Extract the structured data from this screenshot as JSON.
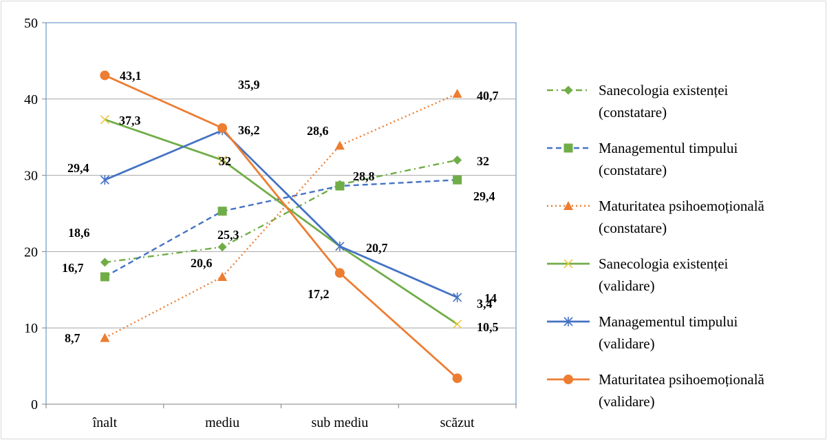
{
  "chart_data": {
    "type": "line",
    "categories": [
      "înalt",
      "mediu",
      "sub mediu",
      "scăzut"
    ],
    "ylim": [
      0,
      50
    ],
    "yticks": [
      0,
      10,
      20,
      30,
      40,
      50
    ],
    "grid": true,
    "legend_position": "right",
    "series": [
      {
        "name": "Sanecologia existenței (constatare)",
        "name_lines": [
          "Sanecologia existenței",
          "(constatare)"
        ],
        "values": [
          18.6,
          20.6,
          28.8,
          32
        ],
        "labels": [
          "18,6",
          "20,6",
          "28,8",
          "32"
        ],
        "color": "#70ad47",
        "dash": "dashdot",
        "marker": "diamond"
      },
      {
        "name": "Managementul timpului (constatare)",
        "name_lines": [
          "Managementul timpului",
          "(constatare)"
        ],
        "values": [
          16.7,
          25.3,
          28.6,
          29.4
        ],
        "labels": [
          "16,7",
          "25,3",
          "28,6",
          "29,4"
        ],
        "color": "#4472c4",
        "dash": "dash",
        "marker": "square-green"
      },
      {
        "name": "Maturitatea psihoemoțională (constatare)",
        "name_lines": [
          "Maturitatea psihoemoțională",
          "(constatare)"
        ],
        "values": [
          8.7,
          16.7,
          33.9,
          40.7
        ],
        "labels": [
          "8,7",
          "",
          "",
          "40,7"
        ],
        "color": "#ed7d31",
        "dash": "dot",
        "marker": "triangle"
      },
      {
        "name": "Sanecologia existenței (validare)",
        "name_lines": [
          "Sanecologia existenței",
          "(validare)"
        ],
        "values": [
          37.3,
          32,
          20.7,
          10.5
        ],
        "labels": [
          "37,3",
          "32",
          "",
          "10,5"
        ],
        "color": "#70ad47",
        "dash": "solid",
        "marker": "x"
      },
      {
        "name": "Managementul timpului (validare)",
        "name_lines": [
          "Managementul timpului",
          "(validare)"
        ],
        "values": [
          29.4,
          35.9,
          20.7,
          14
        ],
        "labels": [
          "29,4",
          "35,9",
          "20,7",
          "14"
        ],
        "color": "#4472c4",
        "dash": "solid",
        "marker": "star"
      },
      {
        "name": "Maturitatea psihoemoțională (validare)",
        "name_lines": [
          "Maturitatea psihoemoțională",
          "(validare)"
        ],
        "values": [
          43.1,
          36.2,
          17.2,
          3.4
        ],
        "labels": [
          "43,1",
          "36,2",
          "17,2",
          "3,4"
        ],
        "color": "#ed7d31",
        "dash": "solid",
        "marker": "circle"
      }
    ]
  }
}
